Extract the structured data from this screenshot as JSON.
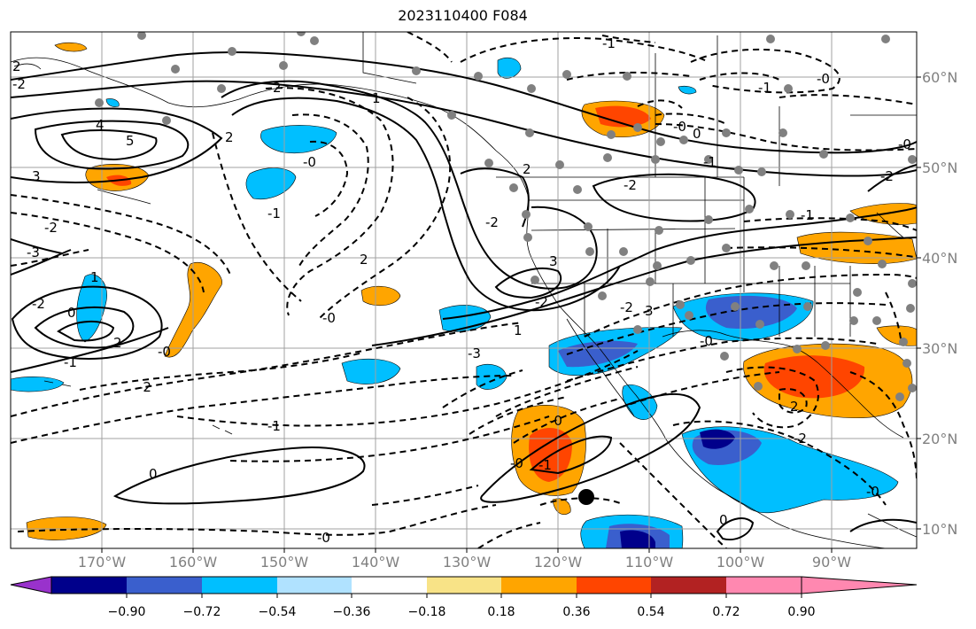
{
  "title": "2023110400 F084",
  "lat_labels": [
    "60°N",
    "50°N",
    "40°N",
    "30°N",
    "20°N",
    "10°N"
  ],
  "lon_labels": [
    "170°W",
    "160°W",
    "150°W",
    "140°W",
    "130°W",
    "120°W",
    "110°W",
    "100°W",
    "90°W"
  ],
  "colorbar": {
    "ticks": [
      "−0.90",
      "−0.72",
      "−0.54",
      "−0.36",
      "−0.18",
      "0.18",
      "0.36",
      "0.54",
      "0.72",
      "0.90"
    ],
    "colors": [
      "#9932cc",
      "#00008b",
      "#3a5fcd",
      "#00bfff",
      "#b0e2ff",
      "#ffffff",
      "#f8e387",
      "#ffa500",
      "#ff4500",
      "#b22222",
      "#ff88b0"
    ]
  },
  "contour_labels": [
    "-1",
    "-0",
    "-1",
    "0",
    "-1",
    "-2",
    "-2",
    "1",
    "2",
    "4",
    "5",
    "3",
    "2",
    "-2",
    "-3",
    "-2",
    "1",
    "0",
    "-1",
    "2",
    "-2",
    "-0",
    "-0",
    "-1",
    "2",
    "-2",
    "3",
    "2",
    "-0",
    "-1",
    "-0",
    "-2",
    "3",
    "-3",
    "-2",
    "0",
    "-0",
    "-0",
    "-1",
    "0",
    "-0",
    "-0",
    "-2",
    "1",
    "2",
    "-1",
    "-0",
    "-2",
    "2",
    "-0"
  ],
  "marker_colors": {
    "station": "#808080",
    "center": "#000000"
  }
}
